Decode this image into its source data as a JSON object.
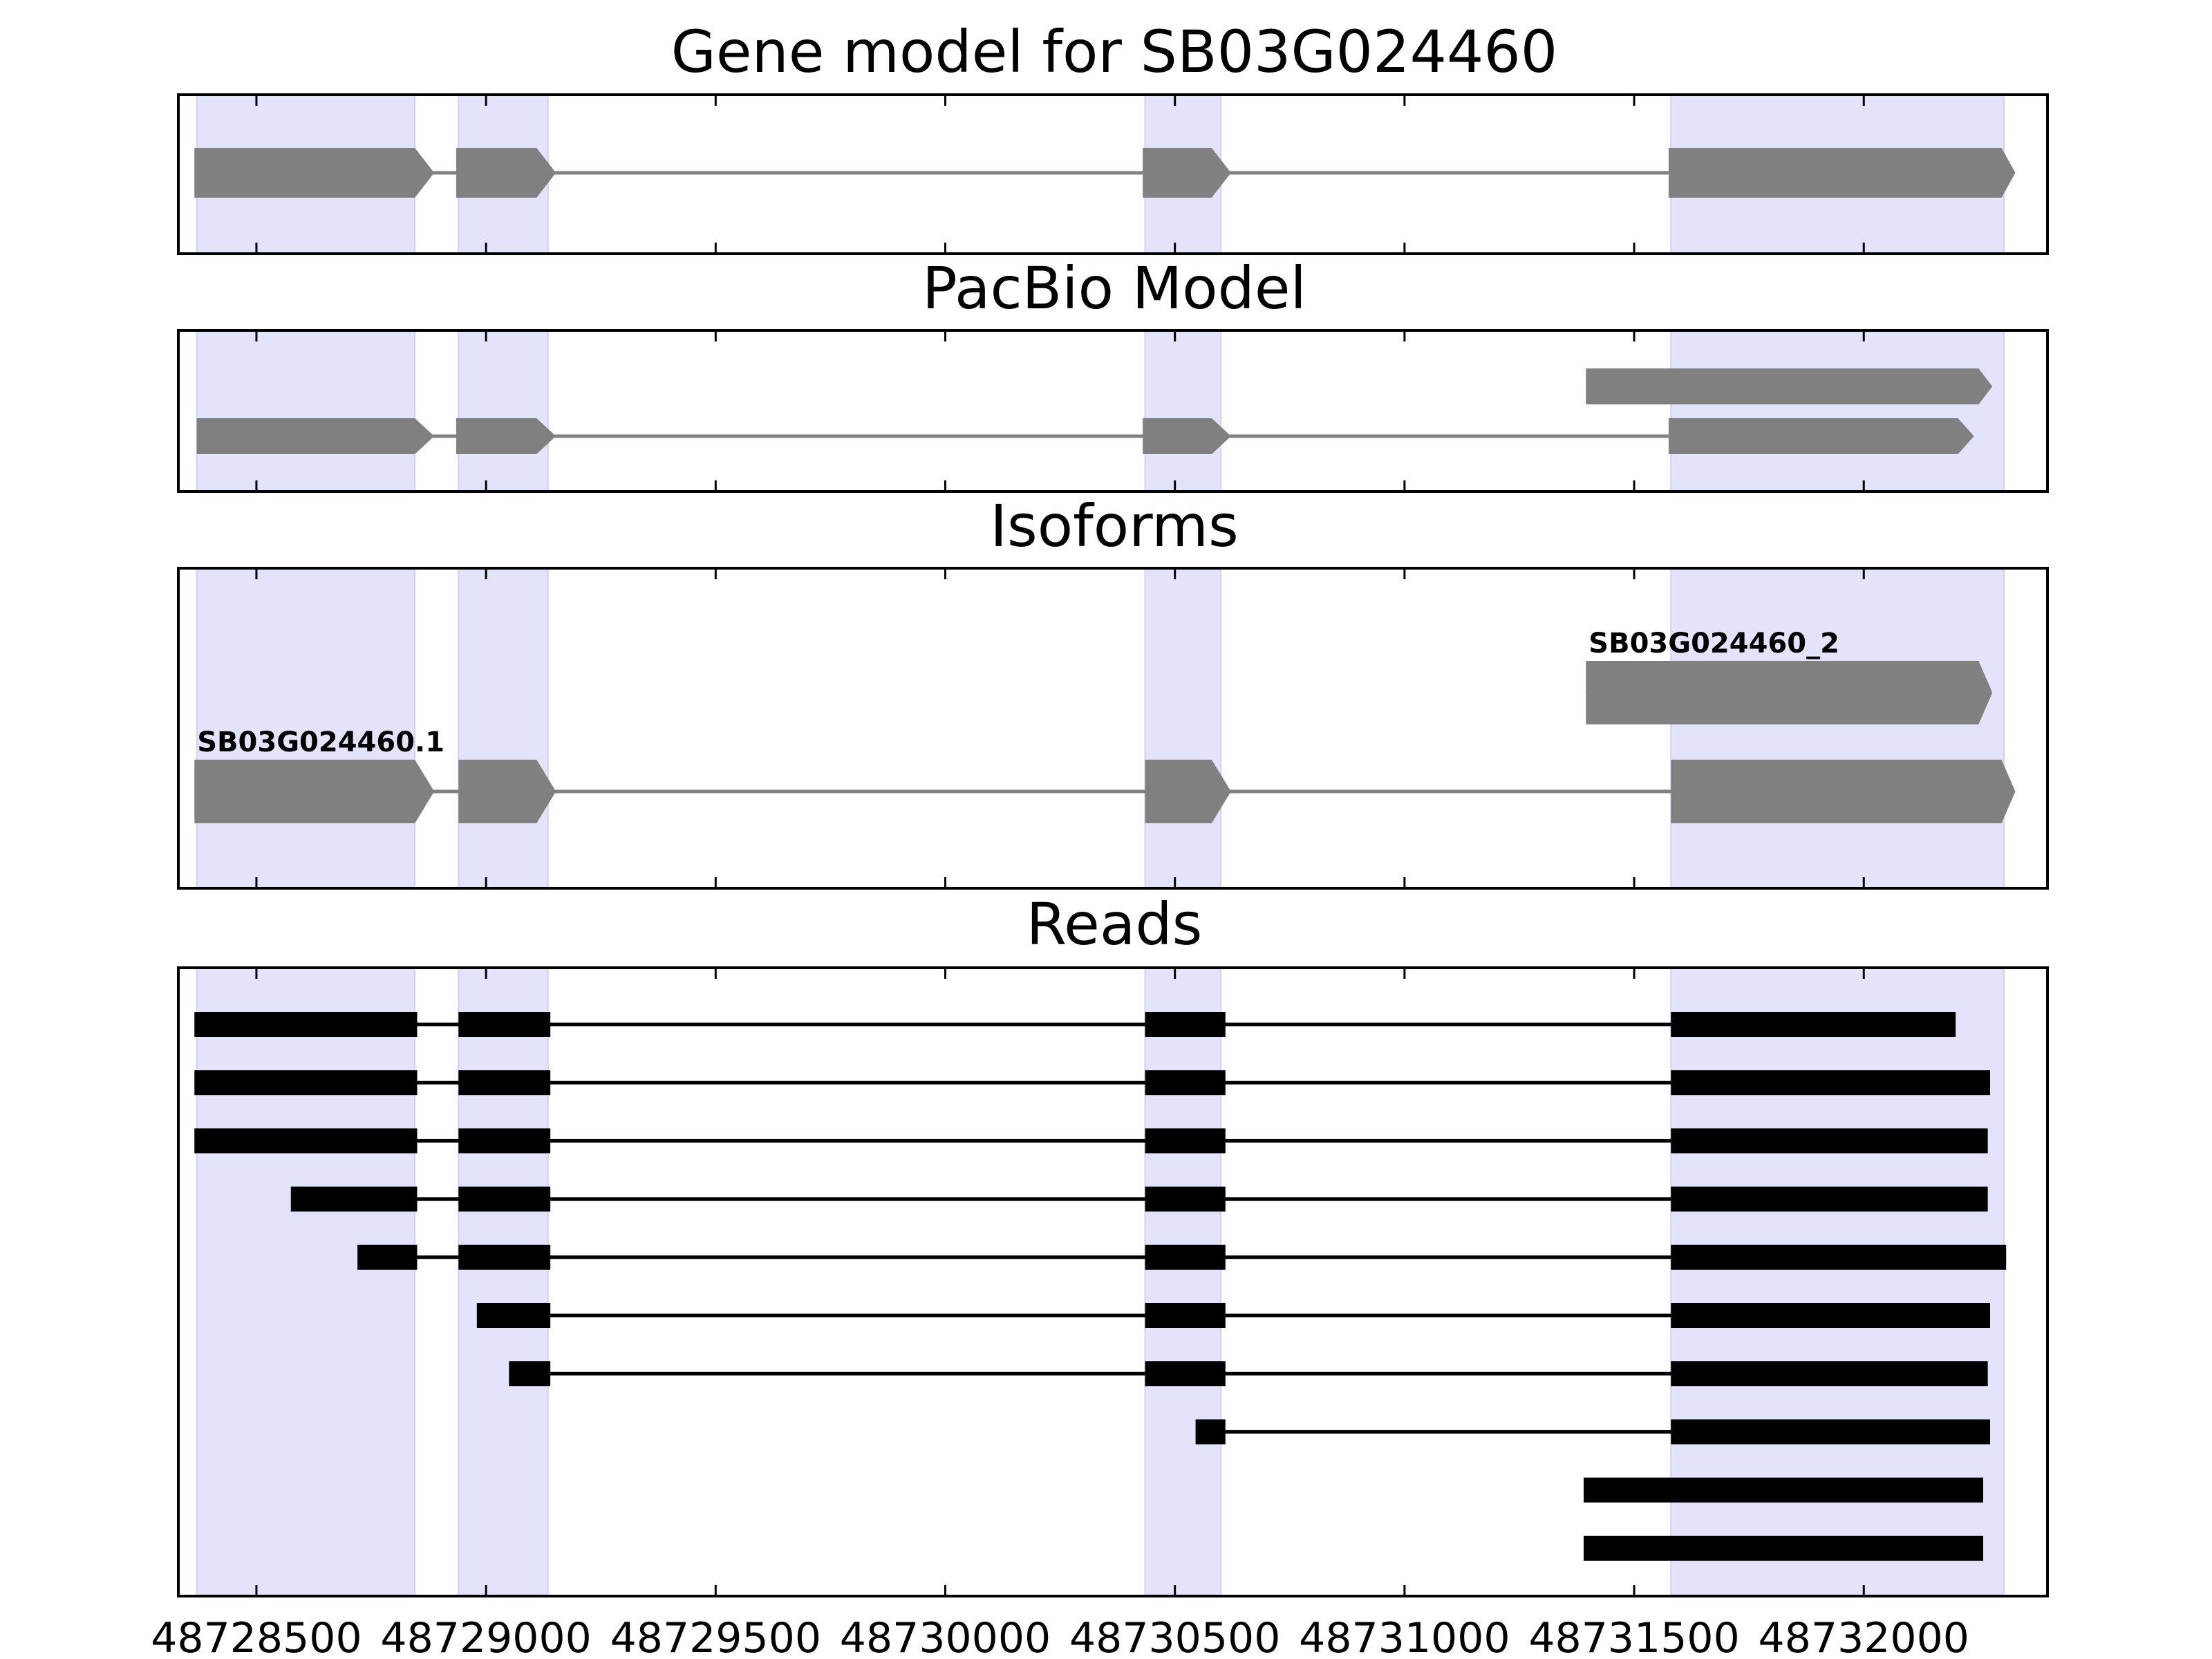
{
  "chart_data": {
    "type": "gene-track",
    "xlim": [
      48728330,
      48732400
    ],
    "x_ticks": [
      48728500,
      48729000,
      48729500,
      48730000,
      48730500,
      48731000,
      48731500,
      48732000
    ],
    "x_tick_labels": [
      "48728500",
      "48729000",
      "48729500",
      "48730000",
      "48730500",
      "48731000",
      "48731500",
      "48732000"
    ],
    "highlight_regions": [
      [
        48728370,
        48728845
      ],
      [
        48728940,
        48729135
      ],
      [
        48730435,
        48730600
      ],
      [
        48731580,
        48732305
      ]
    ],
    "colors": {
      "highlight": "#e3e3fb",
      "exon": "#808080",
      "read": "#000000",
      "frame": "#000000"
    },
    "panels": [
      {
        "title": "Gene model for SB03G024460",
        "tracks": [
          {
            "label": "",
            "exons": [
              [
                48728365,
                48728845
              ],
              [
                48728935,
                48729110
              ],
              [
                48730430,
                48730580
              ],
              [
                48731575,
                48732300
              ]
            ],
            "arrow_end": 48732330
          }
        ]
      },
      {
        "title": "PacBio Model",
        "tracks": [
          {
            "label": "",
            "exons": [
              [
                48728370,
                48728845
              ],
              [
                48728935,
                48729110
              ],
              [
                48730430,
                48730580
              ],
              [
                48731575,
                48732205
              ]
            ],
            "arrow_end": 48732240
          },
          {
            "label": "",
            "exons": [
              [
                48731395,
                48732250
              ]
            ],
            "arrow_end": 48732280
          }
        ]
      },
      {
        "title": "Isoforms",
        "tracks": [
          {
            "label": "SB03G024460.1",
            "exons": [
              [
                48728365,
                48728845
              ],
              [
                48728940,
                48729110
              ],
              [
                48730435,
                48730580
              ],
              [
                48731580,
                48732300
              ]
            ],
            "arrow_end": 48732330
          },
          {
            "label": "SB03G024460_2",
            "exons": [
              [
                48731395,
                48732250
              ]
            ],
            "arrow_end": 48732280
          }
        ]
      }
    ],
    "reads_panel": {
      "title": "Reads",
      "reads": [
        [
          [
            48728365,
            48728850
          ],
          [
            48728940,
            48729140
          ],
          [
            48730435,
            48730610
          ],
          [
            48731580,
            48732200
          ]
        ],
        [
          [
            48728365,
            48728850
          ],
          [
            48728940,
            48729140
          ],
          [
            48730435,
            48730610
          ],
          [
            48731580,
            48732275
          ]
        ],
        [
          [
            48728365,
            48728850
          ],
          [
            48728940,
            48729140
          ],
          [
            48730435,
            48730610
          ],
          [
            48731580,
            48732270
          ]
        ],
        [
          [
            48728575,
            48728850
          ],
          [
            48728940,
            48729140
          ],
          [
            48730435,
            48730610
          ],
          [
            48731580,
            48732270
          ]
        ],
        [
          [
            48728720,
            48728850
          ],
          [
            48728940,
            48729140
          ],
          [
            48730435,
            48730610
          ],
          [
            48731580,
            48732310
          ]
        ],
        [
          [
            48728980,
            48729140
          ],
          [
            48730435,
            48730610
          ],
          [
            48731580,
            48732275
          ]
        ],
        [
          [
            48729050,
            48729140
          ],
          [
            48730435,
            48730610
          ],
          [
            48731580,
            48732270
          ]
        ],
        [
          [
            48730545,
            48730610
          ],
          [
            48731580,
            48732275
          ]
        ],
        [
          [
            48731390,
            48732260
          ]
        ],
        [
          [
            48731390,
            48732260
          ]
        ]
      ]
    }
  }
}
